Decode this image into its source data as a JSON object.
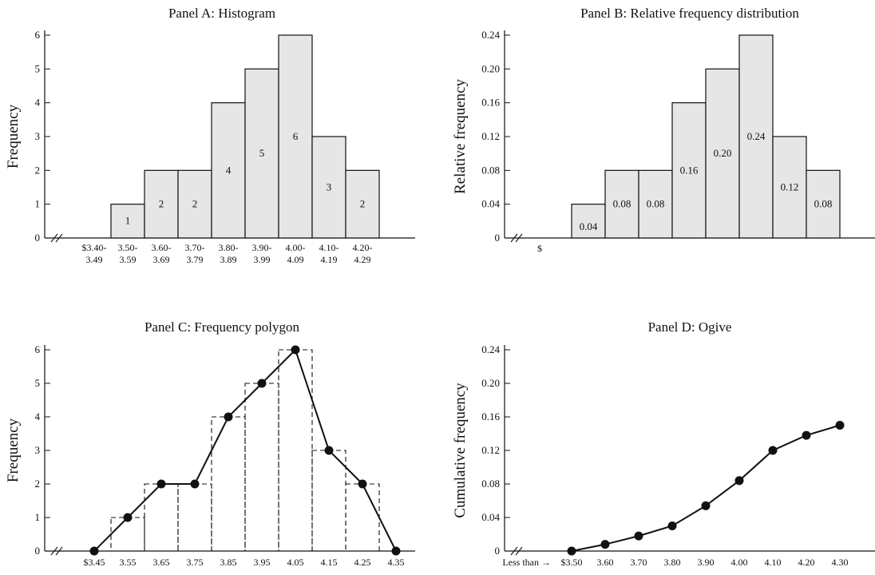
{
  "chart_data": [
    {
      "type": "bar",
      "panel": "A",
      "title": "Panel A: Histogram",
      "ylabel": "Frequency",
      "xlabel": "",
      "ylim": [
        0,
        6
      ],
      "yticks": [
        "0",
        "1",
        "2",
        "3",
        "4",
        "5",
        "6"
      ],
      "categories": [
        [
          "$3.40-",
          "3.49"
        ],
        [
          "3.50-",
          "3.59"
        ],
        [
          "3.60-",
          "3.69"
        ],
        [
          "3.70-",
          "3.79"
        ],
        [
          "3.80-",
          "3.89"
        ],
        [
          "3.90-",
          "3.99"
        ],
        [
          "4.00-",
          "4.09"
        ],
        [
          "4.10-",
          "4.19"
        ],
        [
          "4.20-",
          "4.29"
        ]
      ],
      "values": [
        0,
        1,
        2,
        2,
        4,
        5,
        6,
        3,
        2
      ],
      "data_labels": [
        "",
        "1",
        "2",
        "2",
        "4",
        "5",
        "6",
        "3",
        "2"
      ],
      "bar_color": "#e6e6e6"
    },
    {
      "type": "bar",
      "panel": "B",
      "title": "Panel B: Relative frequency distribution",
      "ylabel": "Relative frequency",
      "xlabel": "",
      "ylim": [
        0,
        0.24
      ],
      "yticks": [
        "0",
        "0.04",
        "0.08",
        "0.12",
        "0.16",
        "0.20",
        "0.24"
      ],
      "x_tick_text": "$",
      "values": [
        0.04,
        0.08,
        0.08,
        0.16,
        0.2,
        0.24,
        0.12,
        0.08
      ],
      "data_labels": [
        "0.04",
        "0.08",
        "0.08",
        "0.16",
        "0.20",
        "0.24",
        "0.12",
        "0.08"
      ],
      "bar_color": "#e6e6e6"
    },
    {
      "type": "line",
      "panel": "C",
      "title": "Panel C: Frequency polygon",
      "ylabel": "Frequency",
      "xlabel": "",
      "ylim": [
        0,
        6
      ],
      "yticks": [
        "0",
        "1",
        "2",
        "3",
        "4",
        "5",
        "6"
      ],
      "x": [
        "$3.45",
        "3.55",
        "3.65",
        "3.75",
        "3.85",
        "3.95",
        "4.05",
        "4.15",
        "4.25",
        "4.35"
      ],
      "values": [
        0,
        1,
        2,
        2,
        4,
        5,
        6,
        3,
        2,
        0
      ],
      "dashed_bars": [
        1,
        2,
        2,
        4,
        5,
        6,
        3,
        2
      ]
    },
    {
      "type": "line",
      "panel": "D",
      "title": "Panel D: Ogive",
      "ylabel": "Cumulative frequency",
      "xlabel": "",
      "ylim": [
        0,
        0.24
      ],
      "yticks": [
        "0",
        "0.04",
        "0.08",
        "0.12",
        "0.16",
        "0.20",
        "0.24"
      ],
      "x_prefix": "Less than →",
      "x": [
        "$3.50",
        "3.60",
        "3.70",
        "3.80",
        "3.90",
        "4.00",
        "4.10",
        "4.20",
        "4.30"
      ],
      "values": [
        0,
        0.008,
        0.018,
        0.03,
        0.054,
        0.084,
        0.12,
        0.138,
        0.15
      ]
    }
  ]
}
